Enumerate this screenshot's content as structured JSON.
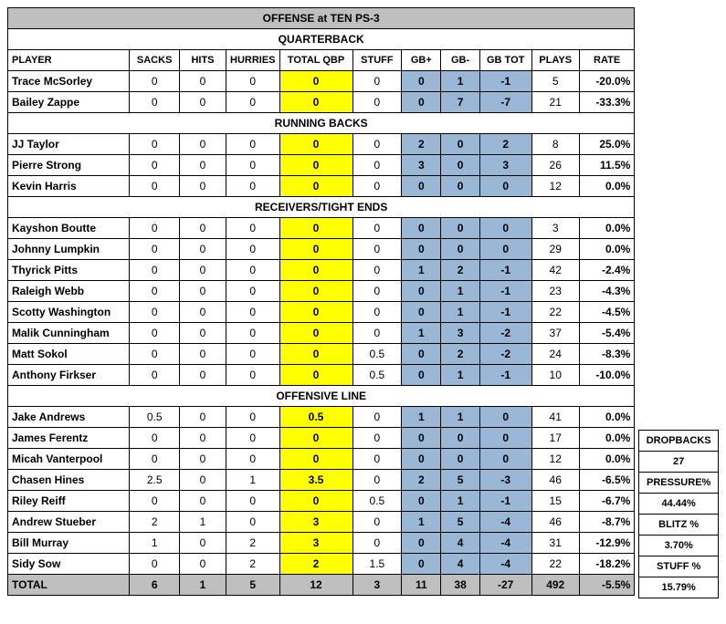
{
  "title": "OFFENSE at TEN PS-3",
  "columns": [
    "PLAYER",
    "SACKS",
    "HITS",
    "HURRIES",
    "TOTAL QBP",
    "STUFF",
    "GB+",
    "GB-",
    "GB TOT",
    "PLAYS",
    "RATE"
  ],
  "sections": [
    {
      "label": "QUARTERBACK",
      "rows": [
        {
          "player": "Trace McSorley",
          "sacks": "0",
          "hits": "0",
          "hurries": "0",
          "qbp": "0",
          "stuff": "0",
          "gbp": "0",
          "gbm": "1",
          "gbt": "-1",
          "plays": "5",
          "rate": "-20.0%"
        },
        {
          "player": "Bailey Zappe",
          "sacks": "0",
          "hits": "0",
          "hurries": "0",
          "qbp": "0",
          "stuff": "0",
          "gbp": "0",
          "gbm": "7",
          "gbt": "-7",
          "plays": "21",
          "rate": "-33.3%"
        }
      ]
    },
    {
      "label": "RUNNING BACKS",
      "rows": [
        {
          "player": "JJ Taylor",
          "sacks": "0",
          "hits": "0",
          "hurries": "0",
          "qbp": "0",
          "stuff": "0",
          "gbp": "2",
          "gbm": "0",
          "gbt": "2",
          "plays": "8",
          "rate": "25.0%"
        },
        {
          "player": "Pierre Strong",
          "sacks": "0",
          "hits": "0",
          "hurries": "0",
          "qbp": "0",
          "stuff": "0",
          "gbp": "3",
          "gbm": "0",
          "gbt": "3",
          "plays": "26",
          "rate": "11.5%"
        },
        {
          "player": "Kevin Harris",
          "sacks": "0",
          "hits": "0",
          "hurries": "0",
          "qbp": "0",
          "stuff": "0",
          "gbp": "0",
          "gbm": "0",
          "gbt": "0",
          "plays": "12",
          "rate": "0.0%"
        }
      ]
    },
    {
      "label": "RECEIVERS/TIGHT ENDS",
      "rows": [
        {
          "player": "Kayshon Boutte",
          "sacks": "0",
          "hits": "0",
          "hurries": "0",
          "qbp": "0",
          "stuff": "0",
          "gbp": "0",
          "gbm": "0",
          "gbt": "0",
          "plays": "3",
          "rate": "0.0%"
        },
        {
          "player": "Johnny Lumpkin",
          "sacks": "0",
          "hits": "0",
          "hurries": "0",
          "qbp": "0",
          "stuff": "0",
          "gbp": "0",
          "gbm": "0",
          "gbt": "0",
          "plays": "29",
          "rate": "0.0%"
        },
        {
          "player": "Thyrick Pitts",
          "sacks": "0",
          "hits": "0",
          "hurries": "0",
          "qbp": "0",
          "stuff": "0",
          "gbp": "1",
          "gbm": "2",
          "gbt": "-1",
          "plays": "42",
          "rate": "-2.4%"
        },
        {
          "player": "Raleigh Webb",
          "sacks": "0",
          "hits": "0",
          "hurries": "0",
          "qbp": "0",
          "stuff": "0",
          "gbp": "0",
          "gbm": "1",
          "gbt": "-1",
          "plays": "23",
          "rate": "-4.3%"
        },
        {
          "player": "Scotty Washington",
          "sacks": "0",
          "hits": "0",
          "hurries": "0",
          "qbp": "0",
          "stuff": "0",
          "gbp": "0",
          "gbm": "1",
          "gbt": "-1",
          "plays": "22",
          "rate": "-4.5%"
        },
        {
          "player": "Malik Cunningham",
          "sacks": "0",
          "hits": "0",
          "hurries": "0",
          "qbp": "0",
          "stuff": "0",
          "gbp": "1",
          "gbm": "3",
          "gbt": "-2",
          "plays": "37",
          "rate": "-5.4%"
        },
        {
          "player": "Matt Sokol",
          "sacks": "0",
          "hits": "0",
          "hurries": "0",
          "qbp": "0",
          "stuff": "0.5",
          "gbp": "0",
          "gbm": "2",
          "gbt": "-2",
          "plays": "24",
          "rate": "-8.3%"
        },
        {
          "player": "Anthony Firkser",
          "sacks": "0",
          "hits": "0",
          "hurries": "0",
          "qbp": "0",
          "stuff": "0.5",
          "gbp": "0",
          "gbm": "1",
          "gbt": "-1",
          "plays": "10",
          "rate": "-10.0%"
        }
      ]
    },
    {
      "label": "OFFENSIVE LINE",
      "rows": [
        {
          "player": "Jake Andrews",
          "sacks": "0.5",
          "hits": "0",
          "hurries": "0",
          "qbp": "0.5",
          "stuff": "0",
          "gbp": "1",
          "gbm": "1",
          "gbt": "0",
          "plays": "41",
          "rate": "0.0%"
        },
        {
          "player": "James Ferentz",
          "sacks": "0",
          "hits": "0",
          "hurries": "0",
          "qbp": "0",
          "stuff": "0",
          "gbp": "0",
          "gbm": "0",
          "gbt": "0",
          "plays": "17",
          "rate": "0.0%"
        },
        {
          "player": "Micah Vanterpool",
          "sacks": "0",
          "hits": "0",
          "hurries": "0",
          "qbp": "0",
          "stuff": "0",
          "gbp": "0",
          "gbm": "0",
          "gbt": "0",
          "plays": "12",
          "rate": "0.0%"
        },
        {
          "player": "Chasen Hines",
          "sacks": "2.5",
          "hits": "0",
          "hurries": "1",
          "qbp": "3.5",
          "stuff": "0",
          "gbp": "2",
          "gbm": "5",
          "gbt": "-3",
          "plays": "46",
          "rate": "-6.5%"
        },
        {
          "player": "Riley Reiff",
          "sacks": "0",
          "hits": "0",
          "hurries": "0",
          "qbp": "0",
          "stuff": "0.5",
          "gbp": "0",
          "gbm": "1",
          "gbt": "-1",
          "plays": "15",
          "rate": "-6.7%"
        },
        {
          "player": "Andrew Stueber",
          "sacks": "2",
          "hits": "1",
          "hurries": "0",
          "qbp": "3",
          "stuff": "0",
          "gbp": "1",
          "gbm": "5",
          "gbt": "-4",
          "plays": "46",
          "rate": "-8.7%"
        },
        {
          "player": "Bill Murray",
          "sacks": "1",
          "hits": "0",
          "hurries": "2",
          "qbp": "3",
          "stuff": "0",
          "gbp": "0",
          "gbm": "4",
          "gbt": "-4",
          "plays": "31",
          "rate": "-12.9%"
        },
        {
          "player": "Sidy Sow",
          "sacks": "0",
          "hits": "0",
          "hurries": "2",
          "qbp": "2",
          "stuff": "1.5",
          "gbp": "0",
          "gbm": "4",
          "gbt": "-4",
          "plays": "22",
          "rate": "-18.2%"
        }
      ]
    }
  ],
  "total": {
    "player": "TOTAL",
    "sacks": "6",
    "hits": "1",
    "hurries": "5",
    "qbp": "12",
    "stuff": "3",
    "gbp": "11",
    "gbm": "38",
    "gbt": "-27",
    "plays": "492",
    "rate": "-5.5%"
  },
  "side": [
    {
      "label": "DROPBACKS",
      "value": "27"
    },
    {
      "label": "PRESSURE%",
      "value": "44.44%"
    },
    {
      "label": "BLITZ %",
      "value": "3.70%"
    },
    {
      "label": "STUFF %",
      "value": "15.79%"
    }
  ]
}
